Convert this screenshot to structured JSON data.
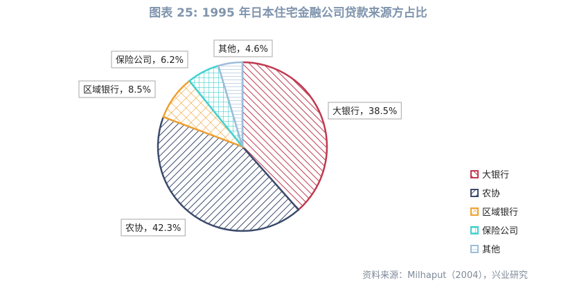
{
  "chart_data": {
    "type": "pie",
    "title": "图表 25: 1995 年日本住宅金融公司贷款来源方占比",
    "source": "资料来源：Milhaput（2004），兴业研究",
    "legend_position": "right",
    "slices": [
      {
        "name": "大银行",
        "value": 38.5,
        "label": "大银行，38.5%",
        "color": "#c0394f",
        "pattern": "diagonal-right"
      },
      {
        "name": "农协",
        "value": 42.3,
        "label": "农协，42.3%",
        "color": "#3b4a6b",
        "pattern": "diagonal-left"
      },
      {
        "name": "区域银行",
        "value": 8.5,
        "label": "区域银行，8.5%",
        "color": "#f0a030",
        "pattern": "crosshatch"
      },
      {
        "name": "保险公司",
        "value": 6.2,
        "label": "保险公司，6.2%",
        "color": "#40d0d0",
        "pattern": "grid"
      },
      {
        "name": "其他",
        "value": 4.6,
        "label": "其他，4.6%",
        "color": "#9dbcd8",
        "pattern": "horizontal"
      }
    ]
  }
}
